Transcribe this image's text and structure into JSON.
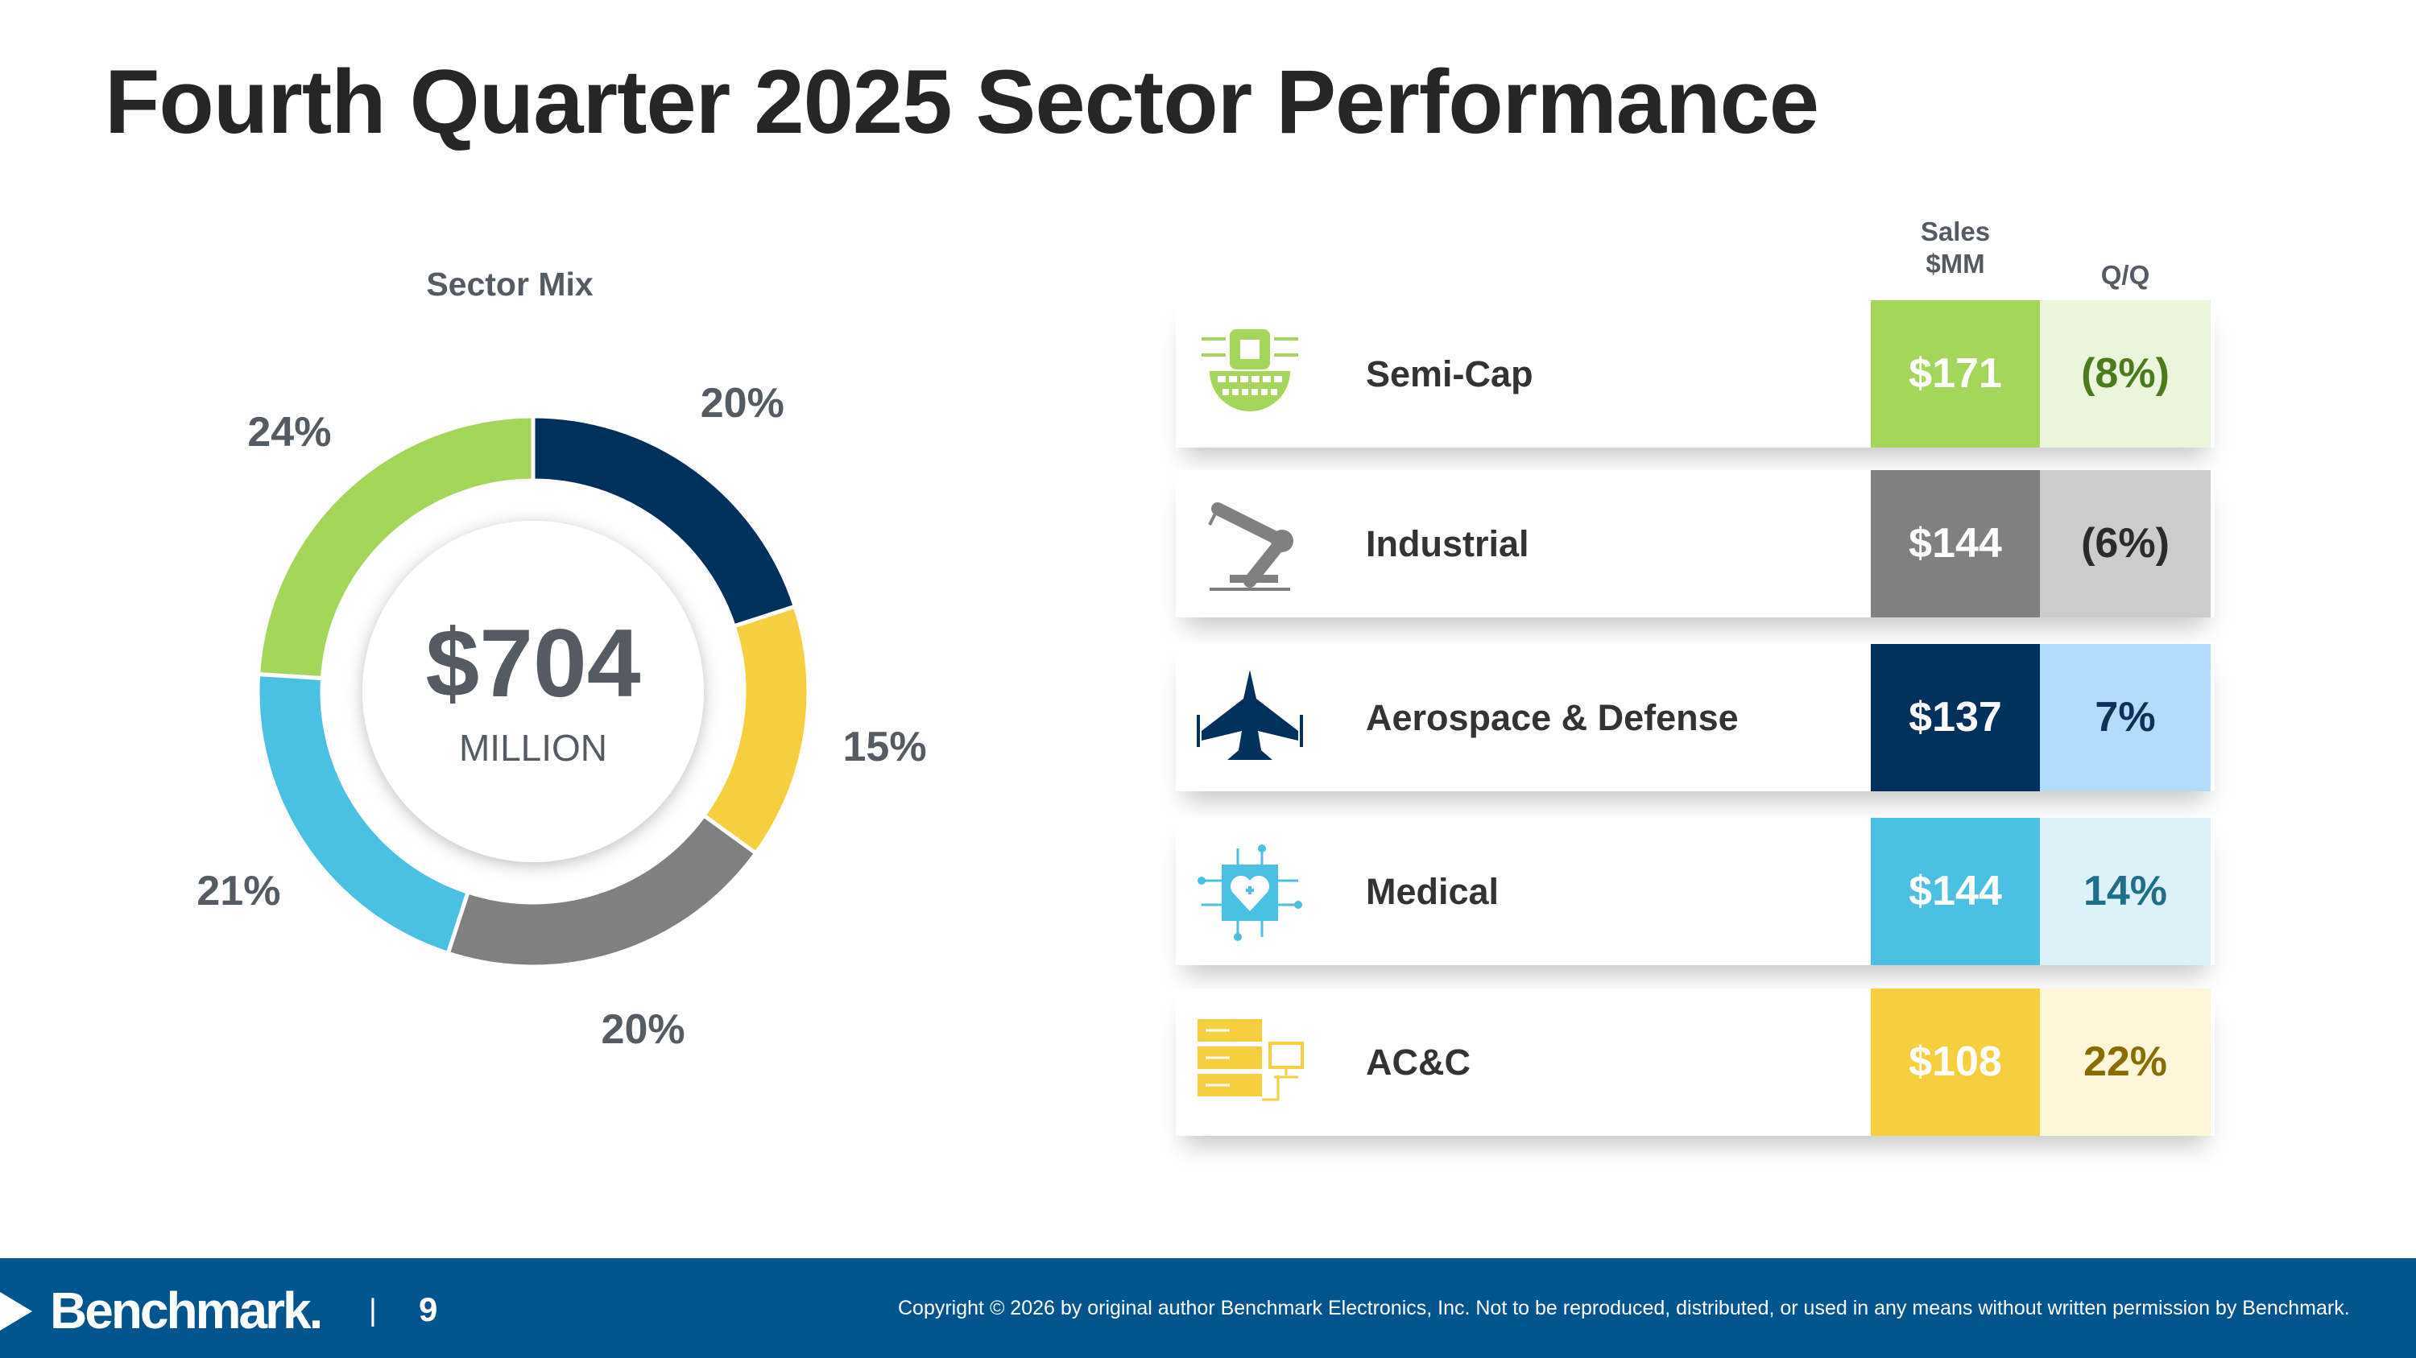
{
  "title": "Fourth Quarter 2025 Sector Performance",
  "chart_data": {
    "type": "pie",
    "subtype": "donut",
    "title": "Sector Mix",
    "center_value": "$704",
    "center_unit": "MILLION",
    "slices": [
      {
        "name": "Semi-Cap",
        "value": 24,
        "label": "24%",
        "color": "#a5d65b"
      },
      {
        "name": "Industrial",
        "value": 20,
        "label": "20%",
        "color": "#808080"
      },
      {
        "name": "Aerospace & Defense",
        "value": 20,
        "label": "20%",
        "color": "#00305c"
      },
      {
        "name": "Medical",
        "value": 21,
        "label": "21%",
        "color": "#4cc0e3"
      },
      {
        "name": "AC&C",
        "value": 15,
        "label": "15%",
        "color": "#f5cf3f"
      }
    ],
    "order_clockwise_from_top": [
      "Aerospace & Defense",
      "AC&C",
      "Industrial",
      "Medical",
      "Semi-Cap"
    ]
  },
  "table": {
    "headers": {
      "sales_line1": "Sales",
      "sales_line2": "$MM",
      "qq": "Q/Q"
    },
    "rows": [
      {
        "name": "Semi-Cap",
        "sales": "$171",
        "qq": "(8%)",
        "icon": "semiconductor-chip-icon",
        "dark": "#a5d65b",
        "light": "#eaf5dc",
        "qq_color": "#4e7a1f",
        "sales_color": "#ffffff"
      },
      {
        "name": "Industrial",
        "sales": "$144",
        "qq": "(6%)",
        "icon": "robot-arm-icon",
        "dark": "#808080",
        "light": "#cccccc",
        "qq_color": "#2b2b2b",
        "sales_color": "#ffffff"
      },
      {
        "name": "Aerospace & Defense",
        "sales": "$137",
        "qq": "7%",
        "icon": "fighter-jet-icon",
        "dark": "#00305c",
        "light": "#b3dcfb",
        "qq_color": "#0f2f5c",
        "sales_color": "#ffffff"
      },
      {
        "name": "Medical",
        "sales": "$144",
        "qq": "14%",
        "icon": "medical-heart-circuit-icon",
        "dark": "#4cc0e3",
        "light": "#dcf1f8",
        "qq_color": "#1f6f8b",
        "sales_color": "#ffffff"
      },
      {
        "name": "AC&C",
        "sales": "$108",
        "qq": "22%",
        "icon": "server-monitor-icon",
        "dark": "#f5cf3f",
        "light": "#fdf6d8",
        "qq_color": "#8a6d00",
        "sales_color": "#ffffff"
      }
    ]
  },
  "footer": {
    "logo": "Benchmark.",
    "separator": "|",
    "page": "9",
    "copyright": "Copyright © 2026 by original author Benchmark Electronics, Inc. Not to be reproduced, distributed, or used in any means without written permission by Benchmark."
  }
}
